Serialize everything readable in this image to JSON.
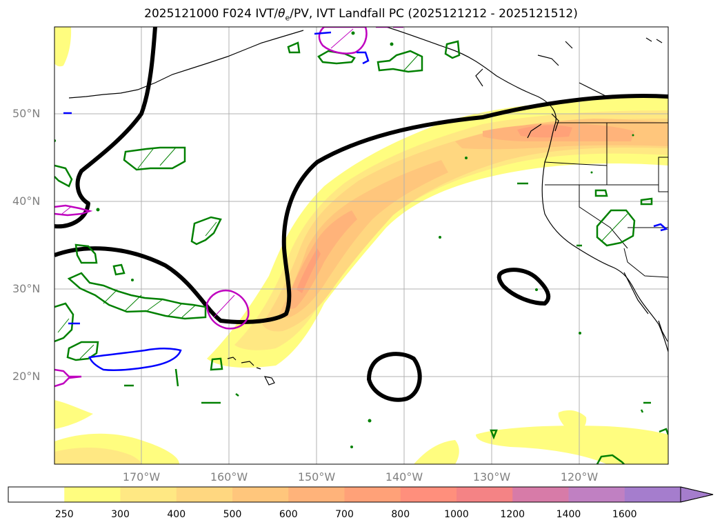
{
  "title": {
    "prefix": "2025121000 F024 IVT/",
    "theta": "θ",
    "theta_sub": "e",
    "suffix": "/PV, IVT Landfall PC (2025121212 - 2025121512)"
  },
  "lat_labels": [
    "50°N",
    "40°N",
    "30°N",
    "20°N"
  ],
  "lon_labels": [
    "170°W",
    "160°W",
    "150°W",
    "140°W",
    "130°W",
    "120°W"
  ],
  "colorbar": {
    "ticks": [
      "250",
      "300",
      "400",
      "500",
      "600",
      "700",
      "800",
      "1000",
      "1200",
      "1400",
      "1600"
    ],
    "colors": [
      "#ffffff",
      "#fffd7f",
      "#ffe883",
      "#ffd780",
      "#ffc67c",
      "#ffb37a",
      "#ffa178",
      "#ff8f7c",
      "#f48385",
      "#d77ba8",
      "#c080c2",
      "#a57dcd"
    ],
    "extend": "max"
  },
  "colors": {
    "theta_contour": "#000000",
    "pv_contour": "#008000",
    "magenta_contour": "#bf00bf",
    "blue_contour": "#0000ff",
    "coastline": "#000000",
    "grid": "#b0b0b0"
  }
}
